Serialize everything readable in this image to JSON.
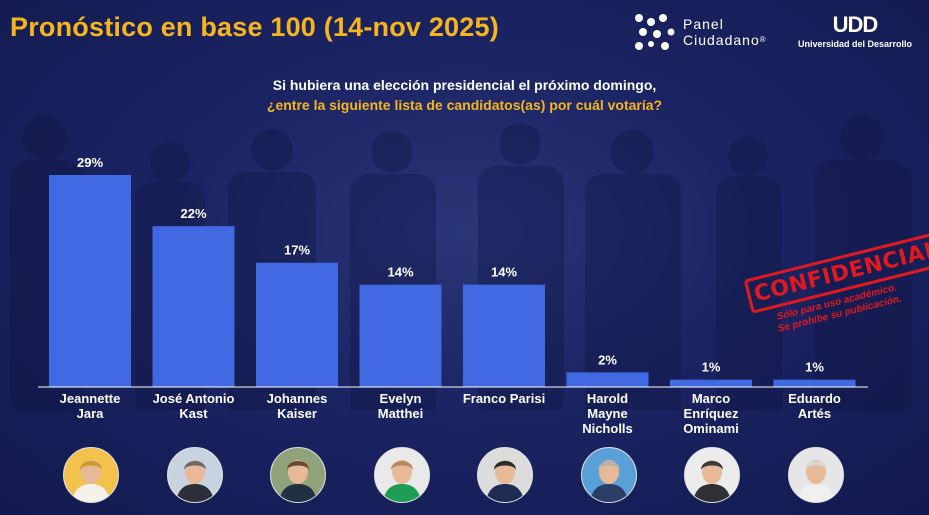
{
  "header": {
    "title": "Pronóstico en base 100 (14-nov 2025)",
    "panel_brand_line1": "Panel",
    "panel_brand_line2": "Ciudadano",
    "panel_brand_reg": "®",
    "udd_mark": "UDD",
    "udd_name": "Universidad del Desarrollo"
  },
  "question": {
    "line1": "Si hubiera una elección presidencial el próximo domingo,",
    "line2": "¿entre la siguiente lista de candidatos(as) por cuál votaría?"
  },
  "stamp": {
    "label": "CONFIDENCIAL",
    "line1": "Sólo para uso académico.",
    "line2": "Se prohíbe su publicación."
  },
  "colors": {
    "title": "#f6b51c",
    "bar": "#4169e1",
    "stamp": "#e0191f"
  },
  "chart_data": {
    "type": "bar",
    "title": "Pronóstico en base 100 (14-nov 2025)",
    "xlabel": "",
    "ylabel": "",
    "ylim": [
      0,
      30
    ],
    "unit": "%",
    "categories": [
      [
        "Jeannette",
        "Jara"
      ],
      [
        "José Antonio",
        "Kast"
      ],
      [
        "Johannes",
        "Kaiser"
      ],
      [
        "Evelyn",
        "Matthei"
      ],
      [
        "Franco Parisi"
      ],
      [
        "Harold",
        "Mayne",
        "Nicholls"
      ],
      [
        "Marco",
        "Enríquez",
        "Ominami"
      ],
      [
        "Eduardo",
        "Artés"
      ]
    ],
    "values": [
      29,
      22,
      17,
      14,
      14,
      2,
      1,
      1
    ],
    "data_labels": [
      "29%",
      "22%",
      "17%",
      "14%",
      "14%",
      "2%",
      "1%",
      "1%"
    ]
  },
  "avatars": [
    {
      "name": "jeannette-jara",
      "bg": "#f2c14e",
      "hair": "#c99a2e",
      "cloth": "#f4f1ea"
    },
    {
      "name": "jose-antonio-kast",
      "bg": "#c9d3df",
      "hair": "#6b6b6b",
      "cloth": "#2a2f3a"
    },
    {
      "name": "johannes-kaiser",
      "bg": "#8fa27a",
      "hair": "#6a4a32",
      "cloth": "#223044"
    },
    {
      "name": "evelyn-matthei",
      "bg": "#e9e9e9",
      "hair": "#b68a5c",
      "cloth": "#1e9e55"
    },
    {
      "name": "franco-parisi",
      "bg": "#dcdcdc",
      "hair": "#2b2b2b",
      "cloth": "#1d2b55"
    },
    {
      "name": "harold-mayne-nicholls",
      "bg": "#5aa0d8",
      "hair": "#b0b0b0",
      "cloth": "#2c3e66"
    },
    {
      "name": "marco-enriquez-ominami",
      "bg": "#ececec",
      "hair": "#3a3a3a",
      "cloth": "#2f3136"
    },
    {
      "name": "eduardo-artes",
      "bg": "#e6e6e6",
      "hair": "#d7d7d7",
      "cloth": "#f0f0f0"
    }
  ]
}
